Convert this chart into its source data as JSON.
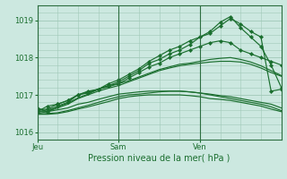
{
  "background_color": "#cce8e0",
  "grid_color": "#a0c8b8",
  "line_color": "#1a6e2e",
  "tick_label_color": "#1a6e2e",
  "axis_label_color": "#1a6e2e",
  "border_color": "#2d6e40",
  "ylim": [
    1015.8,
    1019.4
  ],
  "yticks": [
    1016,
    1017,
    1018,
    1019
  ],
  "xlabel": "Pression niveau de la mer( hPa )",
  "xtick_labels": [
    "Jeu",
    "Sam",
    "Ven"
  ],
  "xtick_positions": [
    0.0,
    0.333,
    0.667
  ],
  "vline_positions": [
    0.0,
    0.333,
    0.667
  ],
  "series": [
    {
      "y": [
        1016.55,
        1016.7,
        1016.75,
        1016.85,
        1017.0,
        1017.08,
        1017.15,
        1017.25,
        1017.3,
        1017.45,
        1017.6,
        1017.75,
        1017.85,
        1018.0,
        1018.1,
        1018.2,
        1018.3,
        1018.4,
        1018.45,
        1018.4,
        1018.2,
        1018.1,
        1018.0,
        1017.9,
        1017.8
      ],
      "marker": true
    },
    {
      "y": [
        1016.65,
        1016.55,
        1016.7,
        1016.8,
        1017.0,
        1017.1,
        1017.15,
        1017.3,
        1017.4,
        1017.55,
        1017.7,
        1017.9,
        1018.05,
        1018.2,
        1018.3,
        1018.45,
        1018.55,
        1018.65,
        1018.85,
        1019.05,
        1018.9,
        1018.7,
        1018.55,
        1017.1,
        1017.15
      ],
      "marker": true
    },
    {
      "y": [
        1016.6,
        1016.62,
        1016.75,
        1016.85,
        1017.0,
        1017.05,
        1017.15,
        1017.25,
        1017.35,
        1017.5,
        1017.65,
        1017.85,
        1017.95,
        1018.1,
        1018.2,
        1018.35,
        1018.55,
        1018.7,
        1018.95,
        1019.1,
        1018.8,
        1018.55,
        1018.3,
        1017.8,
        1017.2
      ],
      "marker": true
    },
    {
      "y": [
        1016.55,
        1016.55,
        1016.6,
        1016.65,
        1016.75,
        1016.8,
        1016.88,
        1016.95,
        1017.02,
        1017.05,
        1017.08,
        1017.1,
        1017.1,
        1017.1,
        1017.1,
        1017.08,
        1017.05,
        1017.02,
        1016.98,
        1016.95,
        1016.9,
        1016.85,
        1016.8,
        1016.75,
        1016.65
      ],
      "marker": false
    },
    {
      "y": [
        1016.48,
        1016.48,
        1016.5,
        1016.55,
        1016.62,
        1016.68,
        1016.75,
        1016.82,
        1016.9,
        1016.95,
        1016.98,
        1017.0,
        1017.0,
        1017.0,
        1017.0,
        1016.98,
        1016.95,
        1016.9,
        1016.88,
        1016.85,
        1016.8,
        1016.75,
        1016.7,
        1016.62,
        1016.55
      ],
      "marker": false
    },
    {
      "y": [
        1016.5,
        1016.55,
        1016.65,
        1016.75,
        1016.9,
        1017.0,
        1017.1,
        1017.18,
        1017.25,
        1017.35,
        1017.45,
        1017.55,
        1017.65,
        1017.72,
        1017.78,
        1017.82,
        1017.85,
        1017.88,
        1017.9,
        1017.9,
        1017.88,
        1017.82,
        1017.72,
        1017.6,
        1017.5
      ],
      "marker": false
    },
    {
      "y": [
        1016.55,
        1016.6,
        1016.68,
        1016.78,
        1016.92,
        1017.02,
        1017.15,
        1017.22,
        1017.3,
        1017.38,
        1017.48,
        1017.58,
        1017.68,
        1017.75,
        1017.82,
        1017.85,
        1017.9,
        1017.95,
        1017.98,
        1018.0,
        1017.95,
        1017.88,
        1017.78,
        1017.65,
        1017.52
      ],
      "marker": false
    },
    {
      "y": [
        1016.48,
        1016.5,
        1016.52,
        1016.58,
        1016.65,
        1016.72,
        1016.8,
        1016.88,
        1016.95,
        1017.0,
        1017.02,
        1017.05,
        1017.08,
        1017.1,
        1017.1,
        1017.08,
        1017.05,
        1017.0,
        1016.95,
        1016.9,
        1016.85,
        1016.8,
        1016.75,
        1016.68,
        1016.58
      ],
      "marker": false
    }
  ],
  "marker_style": "D",
  "markersize": 2.2,
  "linewidth": 0.85
}
